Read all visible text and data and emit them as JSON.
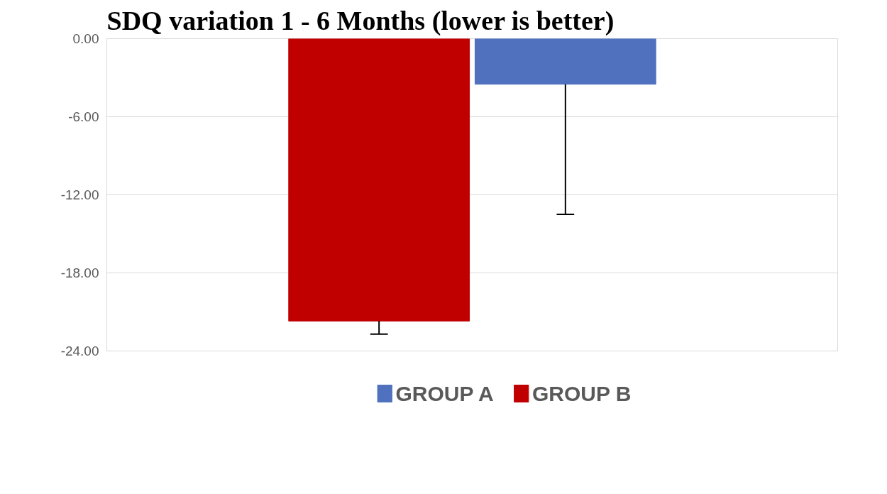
{
  "chart_data": {
    "type": "bar",
    "title": "SDQ variation 1 - 6 Months (lower is better)",
    "categories": [
      null
    ],
    "series": [
      {
        "name": "GROUP A",
        "color": "#4f71be",
        "values": [
          -3.5
        ],
        "errors": [
          [
            -13.5,
            -3.5
          ]
        ]
      },
      {
        "name": "GROUP B",
        "color": "#c00000",
        "values": [
          -21.7
        ],
        "errors": [
          [
            -22.7,
            -21.7
          ]
        ]
      }
    ],
    "ylim": [
      -24,
      0
    ],
    "yticks": [
      {
        "value": 0,
        "label": "0.00"
      },
      {
        "value": -6,
        "label": "-6.00"
      },
      {
        "value": -12,
        "label": "-12.00"
      },
      {
        "value": -18,
        "label": "-18.00"
      },
      {
        "value": -24,
        "label": "-24.00"
      }
    ],
    "grid": "y",
    "legend": "bottom"
  }
}
